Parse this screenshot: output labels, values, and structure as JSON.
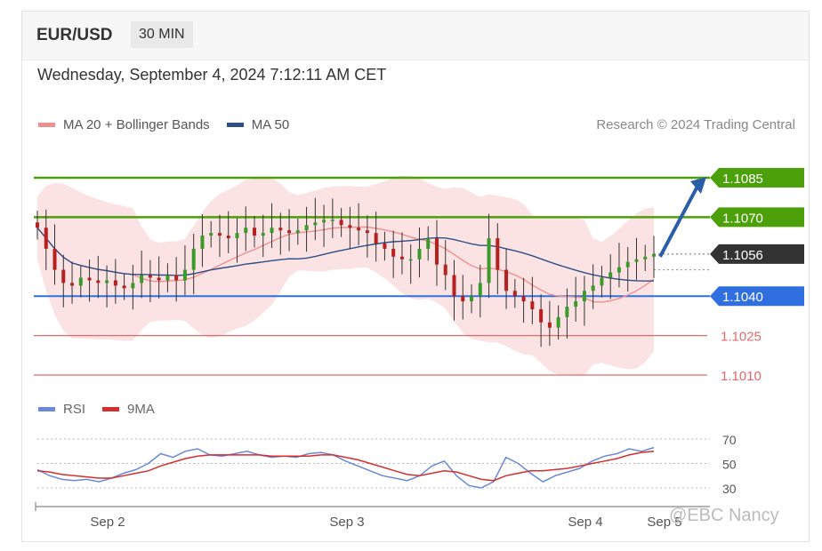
{
  "header": {
    "pair": "EUR/USD",
    "timeframe": "30 MIN"
  },
  "datetime": "Wednesday, September 4, 2024 7:12:11 AM CET",
  "legend": {
    "ma20": "MA 20 + Bollinger Bands",
    "ma50": "MA 50",
    "ma20_color": "#ef9090",
    "ma50_color": "#2d4f85"
  },
  "credit": "Research © 2024 Trading Central",
  "rsi_legend": {
    "rsi": "RSI",
    "ma9": "9MA",
    "rsi_color": "#6a89d6",
    "ma9_color": "#d32f2f"
  },
  "watermark": "@EBC Nancy",
  "chart_data": {
    "type": "line",
    "title": "EUR/USD",
    "price_axis": {
      "min": 1.1,
      "max": 1.1095
    },
    "levels": [
      {
        "label": "1.1085",
        "value": 1.1085,
        "kind": "resistance",
        "color": "#4ca00a"
      },
      {
        "label": "1.1070",
        "value": 1.107,
        "kind": "resistance",
        "color": "#4ca00a"
      },
      {
        "label": "1.1056",
        "value": 1.1056,
        "kind": "current",
        "color": "#333333"
      },
      {
        "label": "1.1040",
        "value": 1.104,
        "kind": "pivot",
        "color": "#2f6fe0"
      },
      {
        "label": "1.1025",
        "value": 1.1025,
        "kind": "support",
        "color": "#e46a6a"
      },
      {
        "label": "1.1010",
        "value": 1.101,
        "kind": "support",
        "color": "#e46a6a"
      }
    ],
    "x_ticks": [
      "Sep 2",
      "Sep 3",
      "Sep 4",
      "Sep 5"
    ],
    "price_series": {
      "name": "EUR/USD",
      "values": [
        1.1066,
        1.1058,
        1.105,
        1.1045,
        1.1044,
        1.1047,
        1.1046,
        1.1045,
        1.1046,
        1.1044,
        1.1043,
        1.1045,
        1.1048,
        1.1047,
        1.1046,
        1.1048,
        1.1046,
        1.105,
        1.1058,
        1.1063,
        1.1064,
        1.1063,
        1.1062,
        1.1064,
        1.1066,
        1.1063,
        1.1064,
        1.1066,
        1.1065,
        1.1064,
        1.1065,
        1.1067,
        1.1068,
        1.1069,
        1.1069,
        1.1067,
        1.1066,
        1.1065,
        1.1064,
        1.106,
        1.1058,
        1.1055,
        1.1054,
        1.1054,
        1.1058,
        1.1062,
        1.1052,
        1.1048,
        1.104,
        1.1038,
        1.104,
        1.1045,
        1.1062,
        1.105,
        1.1042,
        1.104,
        1.1038,
        1.1035,
        1.103,
        1.1028,
        1.1032,
        1.1036,
        1.1038,
        1.1042,
        1.1044,
        1.1047,
        1.1049,
        1.1051,
        1.1053,
        1.1054,
        1.1055,
        1.1056
      ]
    },
    "rsi_axis": {
      "ticks": [
        70,
        50,
        30
      ]
    },
    "rsi_series": [
      {
        "name": "RSI",
        "values": [
          45,
          40,
          37,
          36,
          37,
          35,
          38,
          42,
          45,
          50,
          58,
          55,
          60,
          62,
          57,
          56,
          58,
          60,
          57,
          55,
          56,
          55,
          58,
          59,
          57,
          52,
          48,
          44,
          40,
          38,
          36,
          40,
          48,
          52,
          40,
          32,
          30,
          35,
          55,
          50,
          42,
          35,
          40,
          43,
          46,
          52,
          56,
          58,
          62,
          60,
          63
        ]
      },
      {
        "name": "9MA",
        "values": [
          44,
          43,
          41,
          40,
          39,
          38,
          38,
          40,
          42,
          44,
          48,
          51,
          54,
          56,
          57,
          57,
          57,
          57,
          57,
          56,
          56,
          56,
          56,
          57,
          57,
          55,
          53,
          50,
          47,
          44,
          41,
          40,
          42,
          44,
          43,
          40,
          37,
          36,
          40,
          42,
          44,
          44,
          45,
          46,
          48,
          50,
          52,
          54,
          57,
          59,
          60
        ]
      }
    ]
  }
}
